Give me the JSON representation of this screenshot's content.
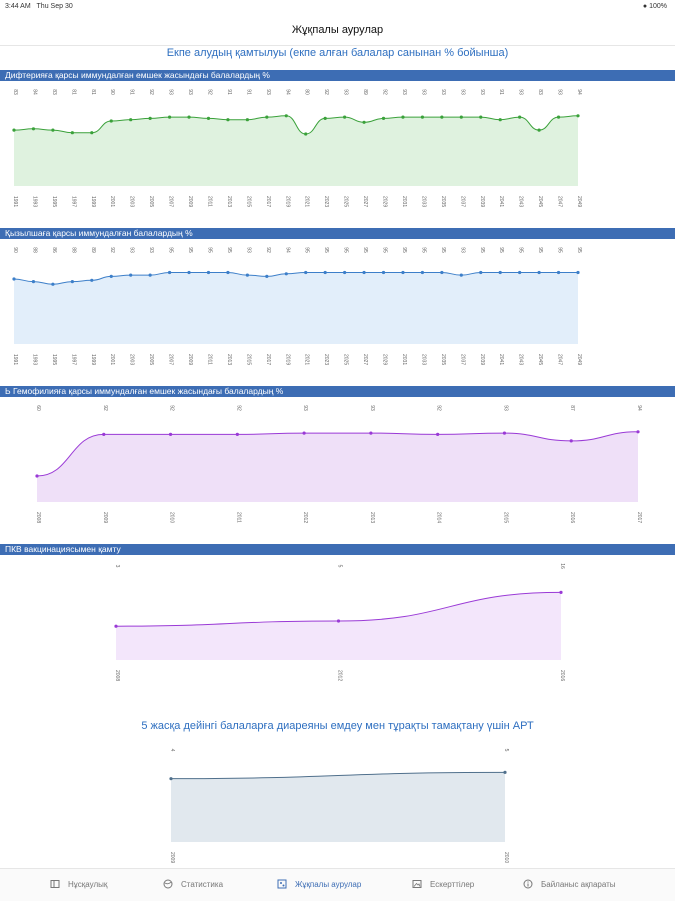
{
  "status": {
    "time": "3:44 AM",
    "date": "Thu Sep 30",
    "battery": "100%"
  },
  "header": {
    "title": "Жұқпалы аурулар"
  },
  "subtitle": "Екпе алудың қамтылуы (екпе алған балалар санынан % бойынша)",
  "section2_title": "5 жасқа дейінгі балаларға диареяны емдеу мен тұрақты тамақтану үшін АРТ",
  "tabs": [
    {
      "label": "Нұсқаулық",
      "icon": "book-icon",
      "active": false
    },
    {
      "label": "Статистика",
      "icon": "globe-icon",
      "active": false
    },
    {
      "label": "Жұқпалы аурулар",
      "icon": "virus-icon",
      "active": true
    },
    {
      "label": "Ескерттілер",
      "icon": "image-icon",
      "active": false
    },
    {
      "label": "Байланыс ақпараты",
      "icon": "info-icon",
      "active": false
    }
  ],
  "colors": {
    "accent": "#3d6db4",
    "green": "#3aa13a",
    "blue": "#3d7fc9",
    "purple": "#9a3ad6",
    "slate": "#50708c"
  },
  "chart_data": [
    {
      "type": "area",
      "title": "Дифтерияға қарсы иммундалған емшек жасындағы балалардың %",
      "x": [
        "1991",
        "1993",
        "1995",
        "1997",
        "1999",
        "2001",
        "2003",
        "2005",
        "2007",
        "2009",
        "2011",
        "2013",
        "2015",
        "2017",
        "2019",
        "2021",
        "2023",
        "2025",
        "2027",
        "2029",
        "2031",
        "2033",
        "2035",
        "2037",
        "2039",
        "2041",
        "2043",
        "2045",
        "2047",
        "2049"
      ],
      "values": [
        83,
        84,
        83,
        81,
        81,
        90,
        91,
        92,
        93,
        93,
        92,
        91,
        91,
        93,
        94,
        80,
        92,
        93,
        89,
        92,
        93,
        93,
        93,
        93,
        93,
        91,
        93,
        83,
        93,
        94
      ],
      "color": "#3aa13a",
      "fill": "#dff2df"
    },
    {
      "type": "area",
      "title": "Қызылшаға қарсы иммундалған балалардың %",
      "x": [
        "1991",
        "1993",
        "1995",
        "1997",
        "1999",
        "2001",
        "2003",
        "2005",
        "2007",
        "2009",
        "2011",
        "2013",
        "2015",
        "2017",
        "2019",
        "2021",
        "2023",
        "2025",
        "2027",
        "2029",
        "2031",
        "2033",
        "2035",
        "2037",
        "2039",
        "2041",
        "2043",
        "2045",
        "2047",
        "2049"
      ],
      "values": [
        90,
        88,
        86,
        88,
        89,
        92,
        93,
        93,
        95,
        95,
        95,
        95,
        93,
        92,
        94,
        95,
        95,
        95,
        95,
        95,
        95,
        95,
        95,
        93,
        95,
        95,
        95,
        95,
        95,
        95
      ],
      "color": "#3d7fc9",
      "fill": "#e2eefa"
    },
    {
      "type": "area",
      "title": "Ь Гемофилияға қарсы иммундалған емшек жасындағы балалардың %",
      "x": [
        "2008",
        "2009",
        "2010",
        "2011",
        "2012",
        "2013",
        "2014",
        "2015",
        "2016",
        "2017"
      ],
      "values": [
        60,
        92,
        92,
        92,
        93,
        93,
        92,
        93,
        87,
        94
      ],
      "color": "#9a3ad6",
      "fill": "#efe0f8"
    },
    {
      "type": "area",
      "title": "ПКВ вакцинациясымен қамту",
      "x": [
        "2008",
        "2012",
        "2016"
      ],
      "values": [
        3,
        5,
        16
      ],
      "color": "#9a3ad6",
      "fill": "#f3e6fb"
    },
    {
      "type": "area",
      "title": "",
      "x": [
        "2009",
        "2010"
      ],
      "values": [
        4,
        5
      ],
      "color": "#50708c",
      "fill": "#e1e8ee"
    }
  ]
}
